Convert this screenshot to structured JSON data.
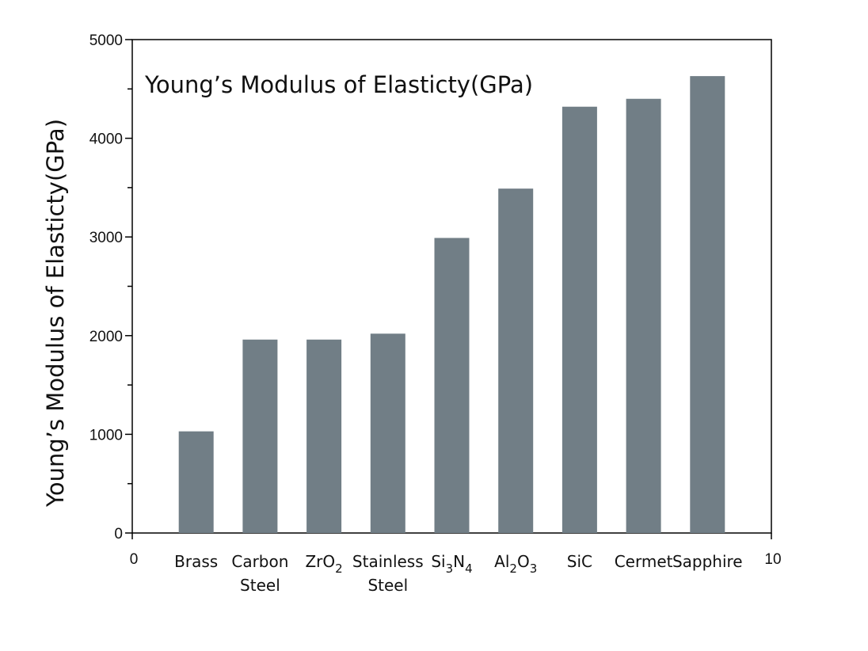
{
  "chart_data": {
    "type": "bar",
    "title": "Young’s Modulus of Elasticty(GPa)",
    "xlabel": "",
    "ylabel": "Young’s Modulus of Elasticty(GPa)",
    "xlim": [
      0,
      10
    ],
    "x_tick_labels": [
      "0",
      "10"
    ],
    "ylim": [
      0,
      5000
    ],
    "y_ticks": [
      0,
      1000,
      2000,
      3000,
      4000,
      5000
    ],
    "y_tick_labels": [
      "0",
      "1000",
      "2000",
      "3000",
      "4000",
      "5000"
    ],
    "y_minor_ticks": [
      500,
      1500,
      2500,
      3500,
      4500
    ],
    "grid": false,
    "bar_color": "#717e86",
    "categories": [
      {
        "label": "Brass",
        "x": 1,
        "value": 1030,
        "lines": [
          [
            {
              "t": "Brass"
            }
          ]
        ]
      },
      {
        "label": "Carbon Steel",
        "x": 2,
        "value": 1960,
        "lines": [
          [
            {
              "t": "Carbon"
            }
          ],
          [
            {
              "t": "Steel"
            }
          ]
        ]
      },
      {
        "label": "ZrO2",
        "x": 3,
        "value": 1960,
        "lines": [
          [
            {
              "t": "ZrO"
            },
            {
              "t": "2",
              "sub": true
            }
          ]
        ]
      },
      {
        "label": "Stainless Steel",
        "x": 4,
        "value": 2020,
        "lines": [
          [
            {
              "t": "Stainless"
            }
          ],
          [
            {
              "t": "Steel"
            }
          ]
        ]
      },
      {
        "label": "Si3N4",
        "x": 5,
        "value": 2990,
        "lines": [
          [
            {
              "t": "Si"
            },
            {
              "t": "3",
              "sub": true
            },
            {
              "t": "N"
            },
            {
              "t": "4",
              "sub": true
            }
          ]
        ]
      },
      {
        "label": "Al2O3",
        "x": 6,
        "value": 3490,
        "lines": [
          [
            {
              "t": "Al"
            },
            {
              "t": "2",
              "sub": true
            },
            {
              "t": "O"
            },
            {
              "t": "3",
              "sub": true
            }
          ]
        ]
      },
      {
        "label": "SiC",
        "x": 7,
        "value": 4320,
        "lines": [
          [
            {
              "t": "SiC"
            }
          ]
        ]
      },
      {
        "label": "Cermet",
        "x": 8,
        "value": 4400,
        "lines": [
          [
            {
              "t": "Cermet"
            }
          ]
        ]
      },
      {
        "label": "Sapphire",
        "x": 9,
        "value": 4630,
        "lines": [
          [
            {
              "t": "Sapphire"
            }
          ]
        ]
      }
    ]
  }
}
